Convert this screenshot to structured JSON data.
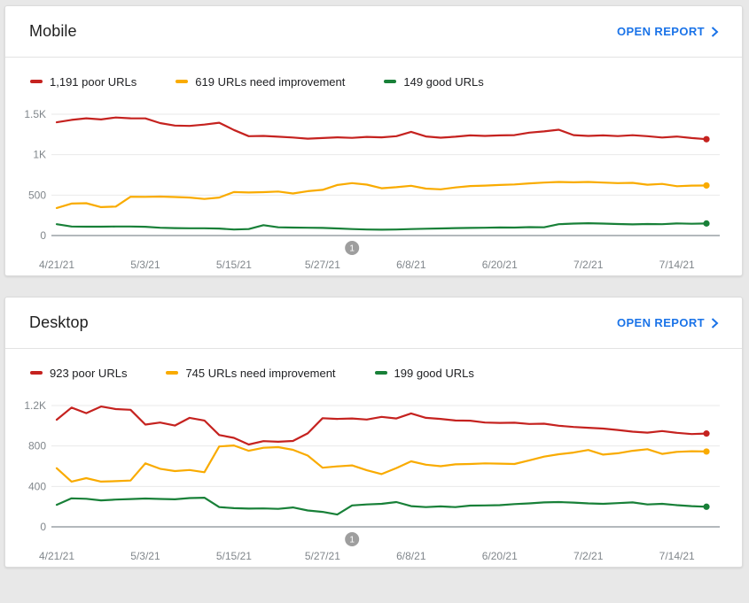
{
  "colors": {
    "poor": "#c5221f",
    "need_improvement": "#f9ab00",
    "good": "#188038",
    "link": "#1a73e8",
    "axis_text": "#80868b",
    "gridline": "#e9e9e9",
    "axis_line": "#9aa0a6",
    "marker_fill": "#9e9e9e"
  },
  "cards": [
    {
      "title": "Mobile",
      "open_report_label": "OPEN REPORT",
      "legend": [
        {
          "key": "poor",
          "label": "1,191 poor URLs",
          "color": "#c5221f"
        },
        {
          "key": "need-improvement",
          "label": "619 URLs need improvement",
          "color": "#f9ab00"
        },
        {
          "key": "good",
          "label": "149 good URLs",
          "color": "#188038"
        }
      ],
      "chart_data": {
        "type": "line",
        "title": "Mobile Core Web Vitals URL counts over time",
        "x_start": "4/21/21",
        "x_end": "7/18/21",
        "x_sampling": "approx. every 2 days, estimated from plot",
        "x_tick_labels": [
          "4/21/21",
          "5/3/21",
          "5/15/21",
          "5/27/21",
          "6/8/21",
          "6/20/21",
          "7/2/21",
          "7/14/21"
        ],
        "x_tick_indices": [
          0,
          6,
          12,
          18,
          24,
          30,
          36,
          42
        ],
        "y_max": 1500,
        "y_ticks": [
          {
            "value": 0,
            "label": "0"
          },
          {
            "value": 500,
            "label": "500"
          },
          {
            "value": 1000,
            "label": "1K"
          },
          {
            "value": 1500,
            "label": "1.5K"
          }
        ],
        "grid": true,
        "legend_position": "top",
        "marker": {
          "label": "1",
          "x_index": 20
        },
        "series": [
          {
            "key": "poor",
            "name": "poor URLs",
            "color": "#c5221f",
            "end_value": 1191,
            "values": [
              1400,
              1430,
              1450,
              1435,
              1460,
              1450,
              1448,
              1390,
              1360,
              1355,
              1372,
              1395,
              1305,
              1228,
              1232,
              1222,
              1212,
              1198,
              1206,
              1214,
              1208,
              1220,
              1214,
              1228,
              1282,
              1225,
              1210,
              1222,
              1238,
              1232,
              1238,
              1242,
              1272,
              1288,
              1308,
              1242,
              1232,
              1238,
              1230,
              1240,
              1228,
              1212,
              1224,
              1205,
              1191
            ]
          },
          {
            "key": "need-improvement",
            "name": "URLs need improvement",
            "color": "#f9ab00",
            "end_value": 619,
            "values": [
              340,
              395,
              400,
              352,
              358,
              480,
              478,
              482,
              476,
              470,
              452,
              470,
              538,
              532,
              536,
              544,
              520,
              548,
              565,
              625,
              648,
              630,
              585,
              598,
              615,
              580,
              572,
              595,
              612,
              618,
              625,
              632,
              645,
              655,
              662,
              658,
              662,
              655,
              648,
              652,
              628,
              638,
              610,
              618,
              619
            ]
          },
          {
            "key": "good",
            "name": "good URLs",
            "color": "#188038",
            "end_value": 149,
            "values": [
              140,
              112,
              110,
              110,
              112,
              112,
              108,
              96,
              92,
              90,
              90,
              86,
              74,
              80,
              128,
              102,
              98,
              96,
              94,
              88,
              80,
              74,
              72,
              74,
              80,
              84,
              88,
              92,
              94,
              96,
              100,
              98,
              104,
              102,
              140,
              148,
              152,
              148,
              142,
              138,
              142,
              140,
              150,
              146,
              149
            ]
          }
        ]
      }
    },
    {
      "title": "Desktop",
      "open_report_label": "OPEN REPORT",
      "legend": [
        {
          "key": "poor",
          "label": "923 poor URLs",
          "color": "#c5221f"
        },
        {
          "key": "need-improvement",
          "label": "745 URLs need improvement",
          "color": "#f9ab00"
        },
        {
          "key": "good",
          "label": "199 good URLs",
          "color": "#188038"
        }
      ],
      "chart_data": {
        "type": "line",
        "title": "Desktop Core Web Vitals URL counts over time",
        "x_start": "4/21/21",
        "x_end": "7/18/21",
        "x_sampling": "approx. every 2 days, estimated from plot",
        "x_tick_labels": [
          "4/21/21",
          "5/3/21",
          "5/15/21",
          "5/27/21",
          "6/8/21",
          "6/20/21",
          "7/2/21",
          "7/14/21"
        ],
        "x_tick_indices": [
          0,
          6,
          12,
          18,
          24,
          30,
          36,
          42
        ],
        "y_max": 1200,
        "y_ticks": [
          {
            "value": 0,
            "label": "0"
          },
          {
            "value": 400,
            "label": "400"
          },
          {
            "value": 800,
            "label": "800"
          },
          {
            "value": 1200,
            "label": "1.2K"
          }
        ],
        "grid": true,
        "legend_position": "top",
        "marker": {
          "label": "1",
          "x_index": 20
        },
        "series": [
          {
            "key": "poor",
            "name": "poor URLs",
            "color": "#c5221f",
            "end_value": 923,
            "values": [
              1060,
              1180,
              1125,
              1190,
              1165,
              1158,
              1012,
              1032,
              1002,
              1078,
              1052,
              908,
              880,
              815,
              848,
              842,
              850,
              925,
              1075,
              1068,
              1072,
              1062,
              1088,
              1072,
              1122,
              1078,
              1068,
              1052,
              1050,
              1032,
              1028,
              1030,
              1018,
              1020,
              1000,
              988,
              980,
              972,
              958,
              942,
              932,
              948,
              930,
              918,
              923
            ]
          },
          {
            "key": "need-improvement",
            "name": "URLs need improvement",
            "color": "#f9ab00",
            "end_value": 745,
            "values": [
              580,
              448,
              482,
              448,
              452,
              458,
              628,
              575,
              552,
              562,
              540,
              795,
              805,
              752,
              782,
              788,
              762,
              705,
              585,
              598,
              608,
              560,
              522,
              582,
              648,
              615,
              600,
              618,
              622,
              628,
              625,
              622,
              658,
              695,
              718,
              735,
              760,
              715,
              728,
              752,
              768,
              722,
              742,
              748,
              745
            ]
          },
          {
            "key": "good",
            "name": "good URLs",
            "color": "#188038",
            "end_value": 199,
            "values": [
              218,
              282,
              278,
              262,
              270,
              275,
              280,
              276,
              272,
              285,
              288,
              195,
              185,
              180,
              182,
              178,
              192,
              162,
              148,
              122,
              212,
              222,
              228,
              245,
              205,
              195,
              202,
              195,
              210,
              212,
              215,
              225,
              232,
              242,
              245,
              240,
              232,
              228,
              235,
              242,
              222,
              228,
              215,
              205,
              199
            ]
          }
        ]
      }
    }
  ]
}
